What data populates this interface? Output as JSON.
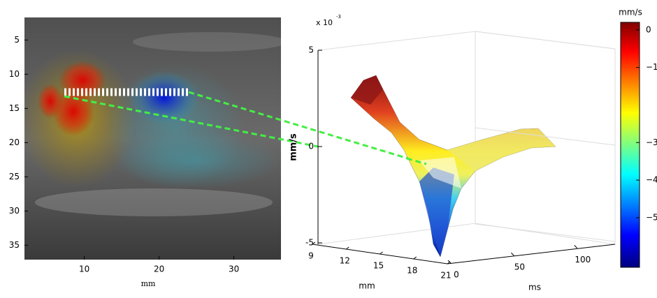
{
  "image_panel": {
    "xlabel": "mm",
    "xticks": [
      10,
      20,
      30
    ],
    "xlim": [
      2,
      36.3
    ],
    "yticks": [
      5,
      10,
      15,
      20,
      25,
      30,
      35
    ],
    "ylim": [
      1.7,
      37.1
    ]
  },
  "surface_plot": {
    "scale_label": "x 10",
    "scale_exponent": "-3",
    "zlabel": "mm/s",
    "zticks": [
      5,
      0,
      -5
    ],
    "zlim": [
      -5,
      5
    ],
    "xlabel": "mm",
    "xticks": [
      9,
      12,
      15,
      18,
      21
    ],
    "xlim": [
      9,
      21
    ],
    "ylabel": "ms",
    "yticks": [
      0,
      50,
      100
    ],
    "ylim": [
      0,
      130
    ]
  },
  "colorbar": {
    "unit": "mm/s",
    "lim": [
      -6.32,
      0.2
    ],
    "ticks": [
      0,
      {
        "value": -1,
        "label": "−1"
      },
      {
        "value": -3,
        "label": "−3"
      },
      {
        "value": -4,
        "label": "−4"
      },
      {
        "value": -5,
        "label": "−5"
      }
    ]
  }
}
